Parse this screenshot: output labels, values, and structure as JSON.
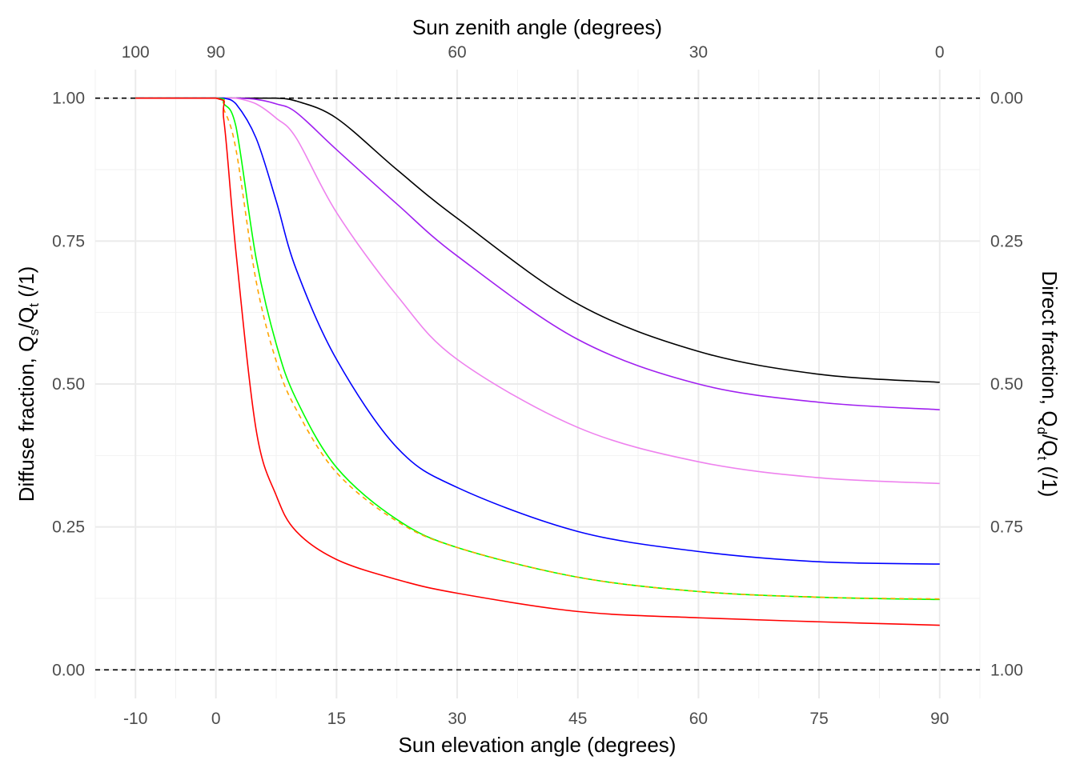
{
  "chart_data": {
    "type": "line",
    "title": "",
    "xlabel": "Sun elevation angle (degrees)",
    "x2label": "Sun zenith angle (degrees)",
    "ylabel_parts": [
      "Diffuse fraction,  Q",
      "s",
      "/Q",
      "t",
      "  (/1)"
    ],
    "y2label_parts": [
      "Direct fraction,  Q",
      "d",
      "/Q",
      "t",
      "  (/1)"
    ],
    "xlim": [
      -15,
      95
    ],
    "ylim": [
      -0.05,
      1.05
    ],
    "grid": true,
    "x_ticks": [
      -10,
      0,
      15,
      30,
      45,
      60,
      75,
      90
    ],
    "x_tick_labels": [
      "-10",
      "0",
      "15",
      "30",
      "45",
      "60",
      "75",
      "90"
    ],
    "x2_ticks": [
      -10,
      0,
      30,
      60,
      90
    ],
    "x2_tick_labels": [
      "100",
      "90",
      "60",
      "30",
      "0"
    ],
    "y_ticks": [
      0,
      0.25,
      0.5,
      0.75,
      1
    ],
    "y_tick_labels": [
      "0.00",
      "0.25",
      "0.50",
      "0.75",
      "1.00"
    ],
    "y2_tick_labels": [
      "1.00",
      "0.75",
      "0.50",
      "0.25",
      "0.00"
    ],
    "reference_lines": [
      0,
      1
    ],
    "x": [
      -10,
      0,
      1,
      2.5,
      5,
      7.5,
      10,
      15,
      22.5,
      30,
      45,
      60,
      75,
      90
    ],
    "series": [
      {
        "name": "black",
        "color": "#000000",
        "dashed": false,
        "values": [
          1,
          1,
          1,
          1,
          1,
          1,
          0.995,
          0.965,
          0.875,
          0.79,
          0.64,
          0.557,
          0.517,
          0.503
        ]
      },
      {
        "name": "purple",
        "color": "#a020f0",
        "dashed": false,
        "values": [
          1,
          1,
          1,
          1,
          0.998,
          0.99,
          0.975,
          0.91,
          0.815,
          0.724,
          0.578,
          0.5,
          0.468,
          0.455
        ]
      },
      {
        "name": "violet",
        "color": "#ee82ee",
        "dashed": false,
        "values": [
          1,
          1,
          1,
          1,
          0.99,
          0.965,
          0.93,
          0.8,
          0.655,
          0.543,
          0.424,
          0.364,
          0.336,
          0.326
        ]
      },
      {
        "name": "blue",
        "color": "#0000ff",
        "dashed": false,
        "values": [
          1,
          1,
          1,
          0.99,
          0.93,
          0.82,
          0.7,
          0.543,
          0.389,
          0.319,
          0.242,
          0.207,
          0.189,
          0.185
        ]
      },
      {
        "name": "green",
        "color": "#00ff00",
        "dashed": false,
        "values": [
          1,
          1,
          0.99,
          0.95,
          0.72,
          0.57,
          0.473,
          0.354,
          0.263,
          0.214,
          0.162,
          0.137,
          0.127,
          0.123
        ]
      },
      {
        "name": "orange",
        "color": "#ffa500",
        "dashed": true,
        "values": [
          1,
          1,
          0.98,
          0.91,
          0.68,
          0.54,
          0.455,
          0.345,
          0.26,
          0.214,
          0.162,
          0.137,
          0.127,
          0.124
        ]
      },
      {
        "name": "red",
        "color": "#ff0000",
        "dashed": false,
        "values": [
          1,
          1,
          0.96,
          0.73,
          0.42,
          0.305,
          0.242,
          0.193,
          0.158,
          0.134,
          0.102,
          0.091,
          0.084,
          0.078
        ]
      }
    ]
  }
}
